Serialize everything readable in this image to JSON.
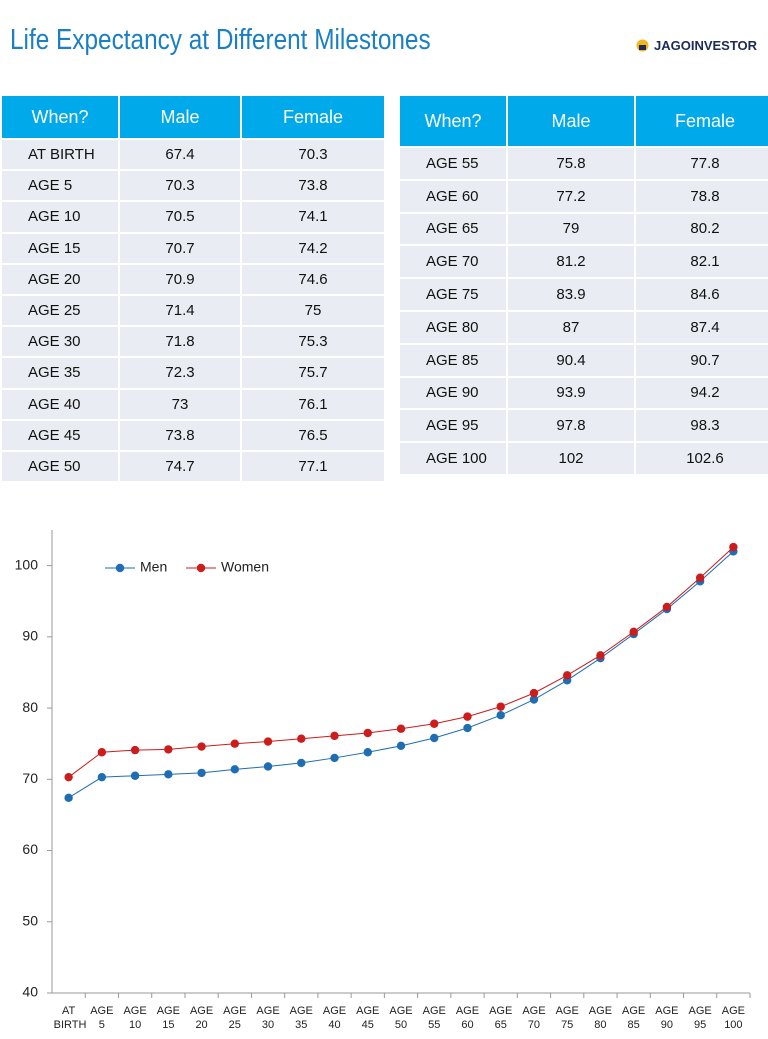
{
  "header": {
    "title": "Life Expectancy at Different Milestones",
    "logo": "JAGOINVESTOR"
  },
  "tables": [
    {
      "columns": [
        "When?",
        "Male",
        "Female"
      ],
      "rows": [
        [
          "AT BIRTH",
          67.4,
          70.3
        ],
        [
          "AGE 5",
          70.3,
          73.8
        ],
        [
          "AGE 10",
          70.5,
          74.1
        ],
        [
          "AGE 15",
          70.7,
          74.2
        ],
        [
          "AGE 20",
          70.9,
          74.6
        ],
        [
          "AGE 25",
          71.4,
          75
        ],
        [
          "AGE 30",
          71.8,
          75.3
        ],
        [
          "AGE 35",
          72.3,
          75.7
        ],
        [
          "AGE 40",
          73,
          76.1
        ],
        [
          "AGE 45",
          73.8,
          76.5
        ],
        [
          "AGE 50",
          74.7,
          77.1
        ]
      ]
    },
    {
      "columns": [
        "When?",
        "Male",
        "Female"
      ],
      "rows": [
        [
          "AGE 55",
          75.8,
          77.8
        ],
        [
          "AGE 60",
          77.2,
          78.8
        ],
        [
          "AGE 65",
          79,
          80.2
        ],
        [
          "AGE 70",
          81.2,
          82.1
        ],
        [
          "AGE 75",
          83.9,
          84.6
        ],
        [
          "AGE 80",
          87,
          87.4
        ],
        [
          "AGE 85",
          90.4,
          90.7
        ],
        [
          "AGE 90",
          93.9,
          94.2
        ],
        [
          "AGE 95",
          97.8,
          98.3
        ],
        [
          "AGE 100",
          102,
          102.6
        ]
      ]
    }
  ],
  "chart_data": {
    "type": "line",
    "categories": [
      "AT BIRTH",
      "AGE 5",
      "AGE 10",
      "AGE 15",
      "AGE 20",
      "AGE 25",
      "AGE 30",
      "AGE 35",
      "AGE 40",
      "AGE 45",
      "AGE 50",
      "AGE 55",
      "AGE 60",
      "AGE 65",
      "AGE 70",
      "AGE 75",
      "AGE 80",
      "AGE 85",
      "AGE 90",
      "AGE 95",
      "AGE 100"
    ],
    "series": [
      {
        "name": "Men",
        "color": "#1f6db3",
        "values": [
          67.4,
          70.3,
          70.5,
          70.7,
          70.9,
          71.4,
          71.8,
          72.3,
          73,
          73.8,
          74.7,
          75.8,
          77.2,
          79,
          81.2,
          83.9,
          87,
          90.4,
          93.9,
          97.8,
          102
        ]
      },
      {
        "name": "Women",
        "color": "#cc1c1c",
        "values": [
          70.3,
          73.8,
          74.1,
          74.2,
          74.6,
          75,
          75.3,
          75.7,
          76.1,
          76.5,
          77.1,
          77.8,
          78.8,
          80.2,
          82.1,
          84.6,
          87.4,
          90.7,
          94.2,
          98.3,
          102.6
        ]
      }
    ],
    "ylim": [
      40,
      105
    ],
    "yticks": [
      40,
      50,
      60,
      70,
      80,
      90,
      100
    ],
    "grid": false,
    "legend": "top-left"
  }
}
